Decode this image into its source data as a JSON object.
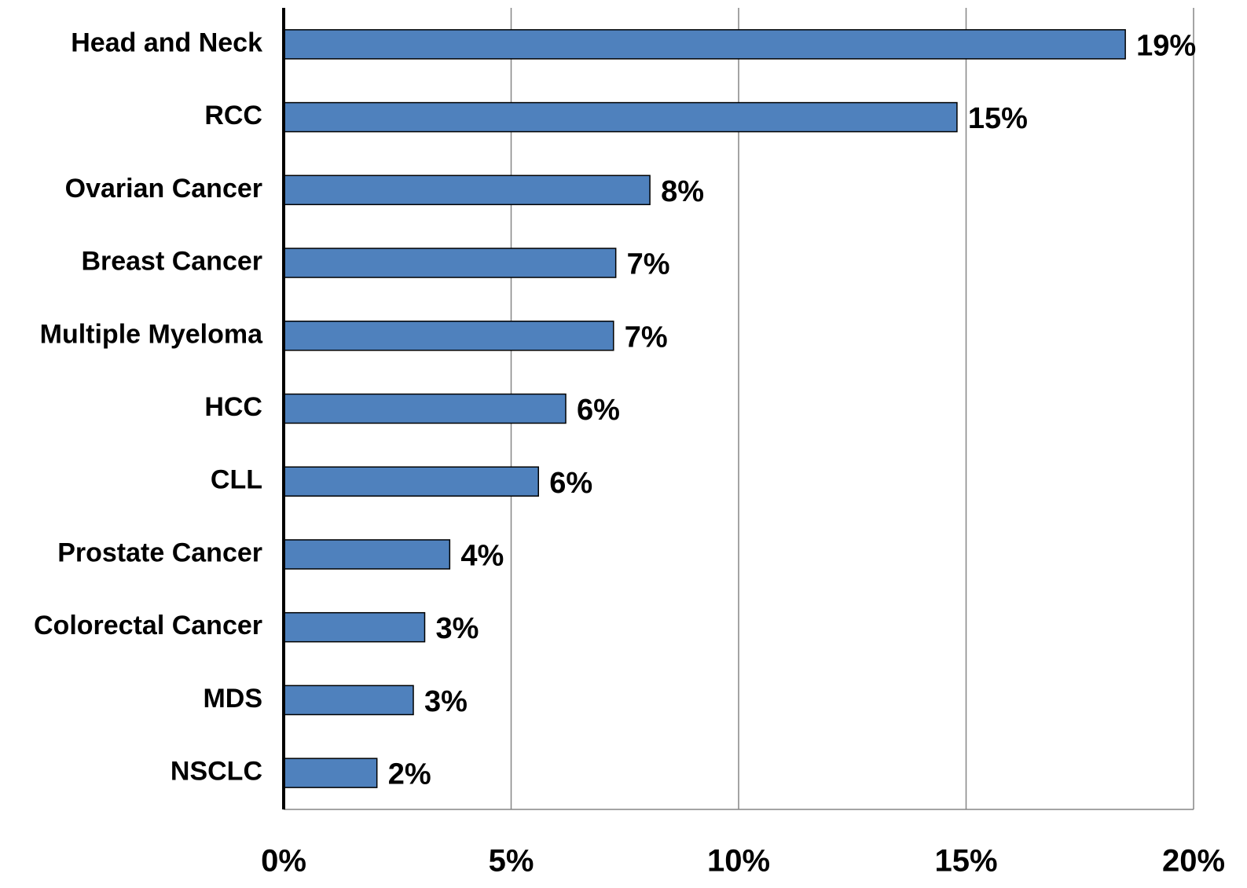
{
  "chart_data": {
    "type": "barh",
    "categories": [
      "Head and Neck",
      "RCC",
      "Ovarian Cancer",
      "Breast Cancer",
      "Multiple Myeloma",
      "HCC",
      "CLL",
      "Prostate Cancer",
      "Colorectal Cancer",
      "MDS",
      "NSCLC"
    ],
    "values": [
      18.5,
      14.8,
      8.05,
      7.3,
      7.25,
      6.2,
      5.6,
      3.65,
      3.1,
      2.85,
      2.05
    ],
    "value_labels": [
      "19%",
      "15%",
      "8%",
      "7%",
      "7%",
      "6%",
      "6%",
      "4%",
      "3%",
      "3%",
      "2%"
    ],
    "color": "#4f81bd",
    "xlim": [
      0,
      20
    ],
    "xticks": [
      {
        "value": 0,
        "label": "0%"
      },
      {
        "value": 5,
        "label": "5%"
      },
      {
        "value": 10,
        "label": "10%"
      },
      {
        "value": 15,
        "label": "15%"
      },
      {
        "value": 20,
        "label": "20%"
      }
    ],
    "grid": true
  }
}
